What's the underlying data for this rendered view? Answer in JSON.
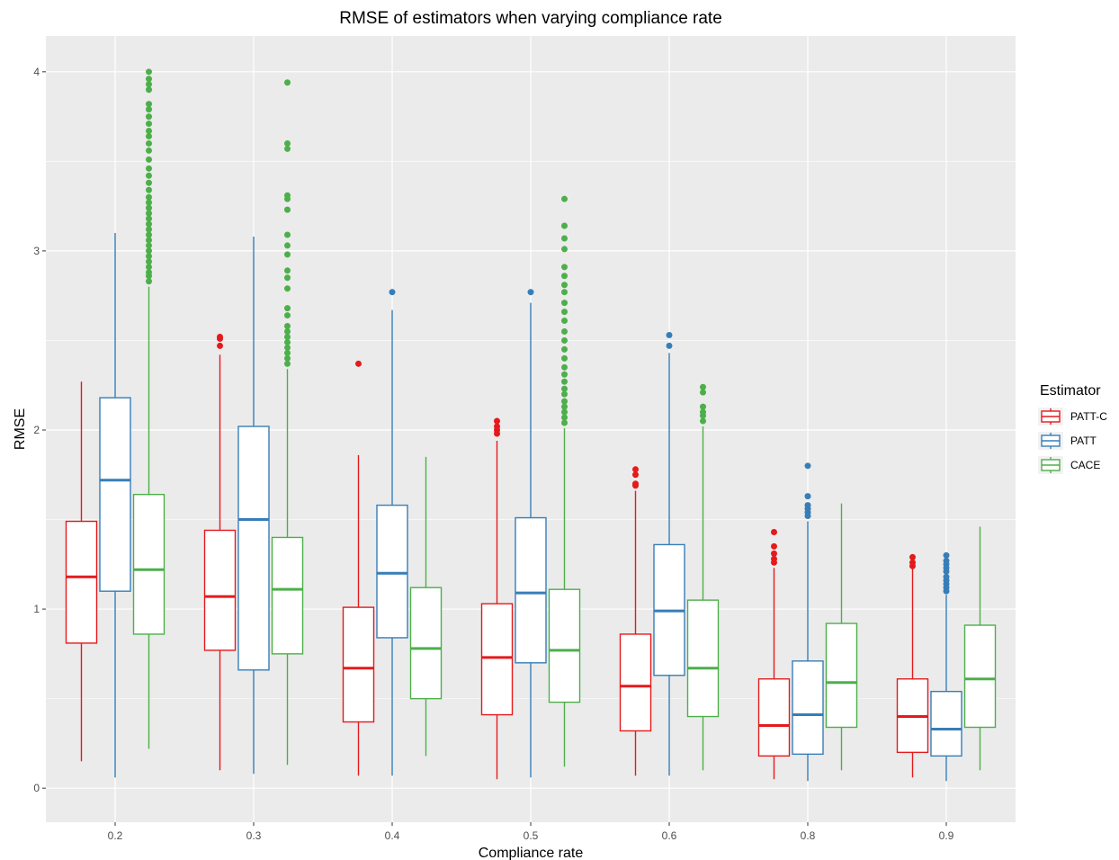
{
  "chart_data": {
    "type": "boxplot",
    "title": "RMSE of estimators when varying compliance rate",
    "xlabel": "Compliance rate",
    "ylabel": "RMSE",
    "ylim": [
      -0.19,
      4.2
    ],
    "yticks": [
      "0",
      "1",
      "2",
      "3",
      "4"
    ],
    "categories": [
      "0.2",
      "0.3",
      "0.4",
      "0.5",
      "0.6",
      "0.8",
      "0.9"
    ],
    "legend": {
      "title": "Estimator",
      "position": "right",
      "entries": [
        "PATT-C",
        "PATT",
        "CACE"
      ]
    },
    "colors": {
      "PATT-C": "#e41a1c",
      "PATT": "#377eb8",
      "CACE": "#4daf4a"
    },
    "panel_background": "#ebebeb",
    "grid": true,
    "series": [
      {
        "name": "PATT-C",
        "boxes": [
          {
            "whisker_low": 0.15,
            "q1": 0.81,
            "median": 1.18,
            "q3": 1.49,
            "whisker_high": 2.27,
            "outliers": []
          },
          {
            "whisker_low": 0.1,
            "q1": 0.77,
            "median": 1.07,
            "q3": 1.44,
            "whisker_high": 2.42,
            "outliers": [
              2.47,
              2.51,
              2.52
            ]
          },
          {
            "whisker_low": 0.07,
            "q1": 0.37,
            "median": 0.67,
            "q3": 1.01,
            "whisker_high": 1.86,
            "outliers": [
              2.37
            ]
          },
          {
            "whisker_low": 0.05,
            "q1": 0.41,
            "median": 0.73,
            "q3": 1.03,
            "whisker_high": 1.94,
            "outliers": [
              1.98,
              2.0,
              2.02,
              2.05
            ]
          },
          {
            "whisker_low": 0.07,
            "q1": 0.32,
            "median": 0.57,
            "q3": 0.86,
            "whisker_high": 1.66,
            "outliers": [
              1.69,
              1.7,
              1.75,
              1.78
            ]
          },
          {
            "whisker_low": 0.05,
            "q1": 0.18,
            "median": 0.35,
            "q3": 0.61,
            "whisker_high": 1.23,
            "outliers": [
              1.26,
              1.28,
              1.31,
              1.35,
              1.43
            ]
          },
          {
            "whisker_low": 0.06,
            "q1": 0.2,
            "median": 0.4,
            "q3": 0.61,
            "whisker_high": 1.23,
            "outliers": [
              1.24,
              1.26,
              1.29
            ]
          }
        ]
      },
      {
        "name": "PATT",
        "boxes": [
          {
            "whisker_low": 0.06,
            "q1": 1.1,
            "median": 1.72,
            "q3": 2.18,
            "whisker_high": 3.1,
            "outliers": []
          },
          {
            "whisker_low": 0.08,
            "q1": 0.66,
            "median": 1.5,
            "q3": 2.02,
            "whisker_high": 3.08,
            "outliers": []
          },
          {
            "whisker_low": 0.07,
            "q1": 0.84,
            "median": 1.2,
            "q3": 1.58,
            "whisker_high": 2.67,
            "outliers": [
              2.77
            ]
          },
          {
            "whisker_low": 0.06,
            "q1": 0.7,
            "median": 1.09,
            "q3": 1.51,
            "whisker_high": 2.71,
            "outliers": [
              2.77
            ]
          },
          {
            "whisker_low": 0.07,
            "q1": 0.63,
            "median": 0.99,
            "q3": 1.36,
            "whisker_high": 2.43,
            "outliers": [
              2.47,
              2.53
            ]
          },
          {
            "whisker_low": 0.04,
            "q1": 0.19,
            "median": 0.41,
            "q3": 0.71,
            "whisker_high": 1.49,
            "outliers": [
              1.52,
              1.54,
              1.56,
              1.58,
              1.63,
              1.8
            ]
          },
          {
            "whisker_low": 0.04,
            "q1": 0.18,
            "median": 0.33,
            "q3": 0.54,
            "whisker_high": 1.08,
            "outliers": [
              1.1,
              1.12,
              1.14,
              1.16,
              1.18,
              1.21,
              1.23,
              1.25,
              1.27,
              1.3
            ]
          }
        ]
      },
      {
        "name": "CACE",
        "boxes": [
          {
            "whisker_low": 0.22,
            "q1": 0.86,
            "median": 1.22,
            "q3": 1.64,
            "whisker_high": 2.8,
            "outliers": [
              2.83,
              2.86,
              2.88,
              2.91,
              2.94,
              2.97,
              3.0,
              3.03,
              3.06,
              3.09,
              3.12,
              3.15,
              3.18,
              3.21,
              3.24,
              3.27,
              3.3,
              3.34,
              3.38,
              3.42,
              3.46,
              3.51,
              3.56,
              3.6,
              3.64,
              3.67,
              3.71,
              3.75,
              3.79,
              3.82,
              3.9,
              3.93,
              3.96,
              4.0
            ]
          },
          {
            "whisker_low": 0.13,
            "q1": 0.75,
            "median": 1.11,
            "q3": 1.4,
            "whisker_high": 2.34,
            "outliers": [
              2.37,
              2.4,
              2.43,
              2.46,
              2.49,
              2.52,
              2.55,
              2.58,
              2.64,
              2.68,
              2.79,
              2.85,
              2.89,
              2.98,
              3.03,
              3.09,
              3.23,
              3.29,
              3.31,
              3.57,
              3.6,
              3.94
            ]
          },
          {
            "whisker_low": 0.18,
            "q1": 0.5,
            "median": 0.78,
            "q3": 1.12,
            "whisker_high": 1.85,
            "outliers": []
          },
          {
            "whisker_low": 0.12,
            "q1": 0.48,
            "median": 0.77,
            "q3": 1.11,
            "whisker_high": 2.01,
            "outliers": [
              2.04,
              2.07,
              2.1,
              2.13,
              2.16,
              2.2,
              2.23,
              2.27,
              2.31,
              2.35,
              2.4,
              2.45,
              2.5,
              2.55,
              2.61,
              2.66,
              2.71,
              2.77,
              2.81,
              2.86,
              2.91,
              3.01,
              3.07,
              3.14,
              3.29
            ]
          },
          {
            "whisker_low": 0.1,
            "q1": 0.4,
            "median": 0.67,
            "q3": 1.05,
            "whisker_high": 2.02,
            "outliers": [
              2.05,
              2.08,
              2.1,
              2.13,
              2.21,
              2.24
            ]
          },
          {
            "whisker_low": 0.1,
            "q1": 0.34,
            "median": 0.59,
            "q3": 0.92,
            "whisker_high": 1.59,
            "outliers": []
          },
          {
            "whisker_low": 0.1,
            "q1": 0.34,
            "median": 0.61,
            "q3": 0.91,
            "whisker_high": 1.46,
            "outliers": []
          }
        ]
      }
    ]
  }
}
